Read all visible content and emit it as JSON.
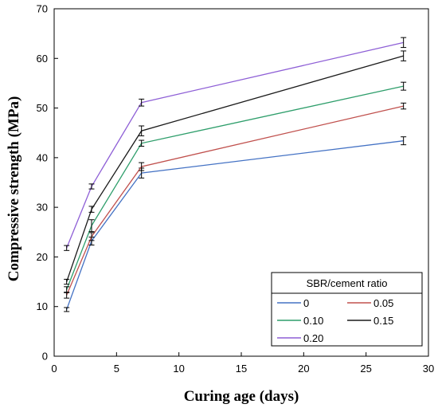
{
  "chart_data": {
    "type": "line",
    "xlabel": "Curing age (days)",
    "ylabel": "Compressive strength (MPa)",
    "xlim": [
      0,
      30
    ],
    "ylim": [
      0,
      70
    ],
    "xticks": [
      0,
      5,
      10,
      15,
      20,
      25,
      30
    ],
    "yticks": [
      0,
      10,
      20,
      30,
      40,
      50,
      60,
      70
    ],
    "grid": false,
    "error_bars": true,
    "legend_title": "SBR/cement ratio",
    "legend_position": "bottom-right",
    "series": [
      {
        "name": "0",
        "color": "#4472C4",
        "x": [
          1,
          3,
          7,
          28
        ],
        "y": [
          9.4,
          23.2,
          36.9,
          43.4
        ],
        "err": [
          0.4,
          0.8,
          1.0,
          0.8
        ]
      },
      {
        "name": "0.05",
        "color": "#C0504D",
        "x": [
          1,
          3,
          7,
          28
        ],
        "y": [
          12.3,
          24.1,
          38.2,
          50.4
        ],
        "err": [
          0.6,
          0.8,
          0.8,
          0.6
        ]
      },
      {
        "name": "0.10",
        "color": "#2E9E6B",
        "x": [
          1,
          3,
          7,
          28
        ],
        "y": [
          13.4,
          26.3,
          42.9,
          54.4
        ],
        "err": [
          0.6,
          1.2,
          0.6,
          0.8
        ]
      },
      {
        "name": "0.15",
        "color": "#1a1a1a",
        "x": [
          1,
          3,
          7,
          28
        ],
        "y": [
          15.0,
          29.6,
          45.4,
          60.5
        ],
        "err": [
          0.5,
          0.6,
          1.0,
          1.0
        ]
      },
      {
        "name": "0.20",
        "color": "#8E5FD6",
        "x": [
          1,
          3,
          7,
          28
        ],
        "y": [
          21.8,
          34.2,
          51.1,
          63.2
        ],
        "err": [
          0.5,
          0.5,
          0.7,
          1.0
        ]
      }
    ]
  }
}
